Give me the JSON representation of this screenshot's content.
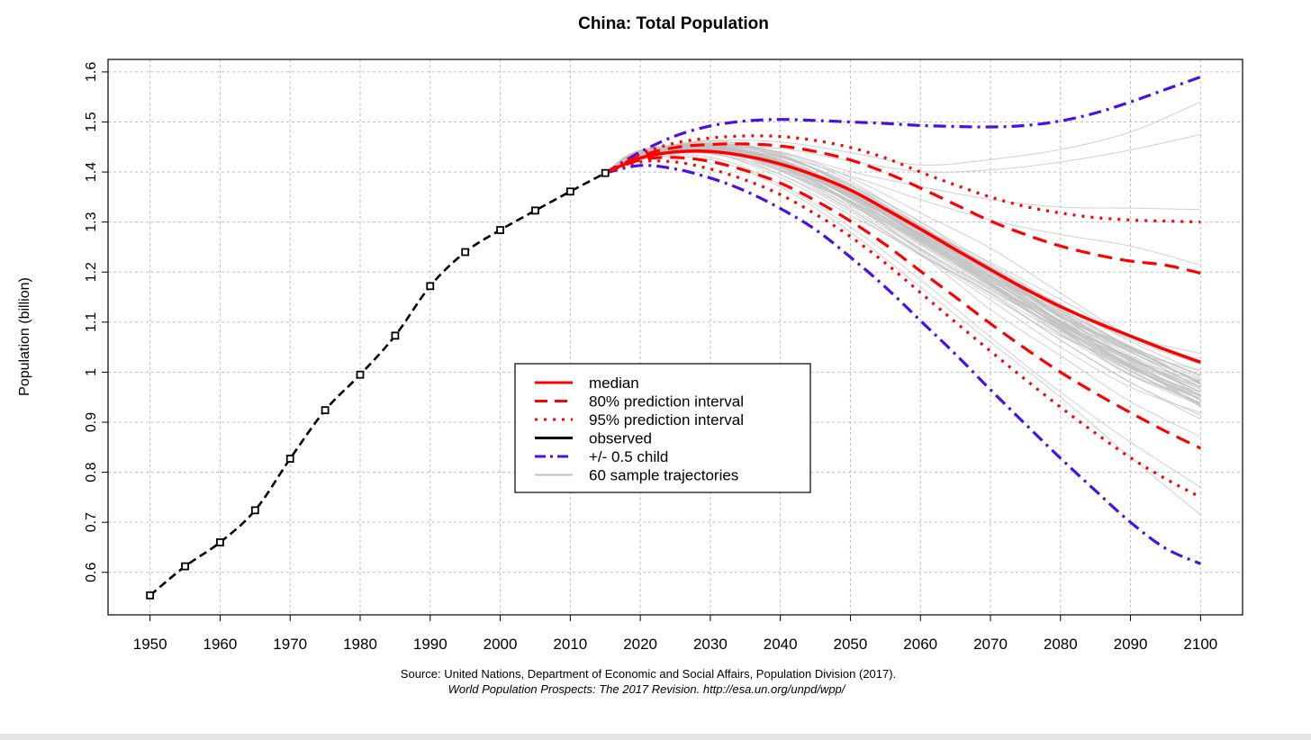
{
  "chart_data": {
    "type": "line",
    "title": "China: Total Population",
    "xlabel": "",
    "ylabel": "Population (billion)",
    "xlim": [
      1944,
      2106
    ],
    "ylim": [
      0.515,
      1.625
    ],
    "xticks": [
      1950,
      1960,
      1970,
      1980,
      1990,
      2000,
      2010,
      2020,
      2030,
      2040,
      2050,
      2060,
      2070,
      2080,
      2090,
      2100
    ],
    "yticks": [
      0.6,
      0.7,
      0.8,
      0.9,
      1,
      1.1,
      1.2,
      1.3,
      1.4,
      1.5,
      1.6
    ],
    "grid": true,
    "legend_position": "center",
    "colors": {
      "median": "#ff0000",
      "observed": "#000000",
      "child": "#4b0ee8",
      "trajectories": "#c0c0c0"
    },
    "legend": [
      {
        "label": "median",
        "style": "solid",
        "color": "#ff0000"
      },
      {
        "label": "80% prediction interval",
        "style": "dashed",
        "color": "#ff0000"
      },
      {
        "label": "95% prediction interval",
        "style": "dotted",
        "color": "#ff0000"
      },
      {
        "label": "observed",
        "style": "solid",
        "color": "#000000"
      },
      {
        "label": "+/- 0.5 child",
        "style": "dashdot",
        "color": "#4b0ee8"
      },
      {
        "label": "60 sample trajectories",
        "style": "solid",
        "color": "#c0c0c0"
      }
    ],
    "series": [
      {
        "name": "observed",
        "x": [
          1950,
          1955,
          1960,
          1965,
          1970,
          1975,
          1980,
          1985,
          1990,
          1995,
          2000,
          2005,
          2010,
          2015
        ],
        "y": [
          0.554,
          0.612,
          0.66,
          0.724,
          0.827,
          0.924,
          0.995,
          1.073,
          1.172,
          1.24,
          1.284,
          1.323,
          1.361,
          1.398
        ]
      },
      {
        "name": "median",
        "x": [
          2015,
          2020,
          2025,
          2030,
          2035,
          2040,
          2045,
          2050,
          2055,
          2060,
          2065,
          2070,
          2075,
          2080,
          2085,
          2090,
          2095,
          2100
        ],
        "y": [
          1.398,
          1.428,
          1.44,
          1.441,
          1.432,
          1.416,
          1.393,
          1.364,
          1.326,
          1.286,
          1.245,
          1.205,
          1.166,
          1.131,
          1.1,
          1.072,
          1.045,
          1.02
        ]
      },
      {
        "name": "80% prediction interval (upper)",
        "x": [
          2015,
          2020,
          2025,
          2030,
          2035,
          2040,
          2045,
          2050,
          2055,
          2060,
          2065,
          2070,
          2075,
          2080,
          2085,
          2090,
          2095,
          2100
        ],
        "y": [
          1.398,
          1.432,
          1.449,
          1.455,
          1.456,
          1.452,
          1.441,
          1.424,
          1.399,
          1.368,
          1.335,
          1.302,
          1.275,
          1.252,
          1.235,
          1.222,
          1.214,
          1.198
        ]
      },
      {
        "name": "80% prediction interval (lower)",
        "x": [
          2015,
          2020,
          2025,
          2030,
          2035,
          2040,
          2045,
          2050,
          2055,
          2060,
          2065,
          2070,
          2075,
          2080,
          2085,
          2090,
          2095,
          2100
        ],
        "y": [
          1.398,
          1.424,
          1.429,
          1.421,
          1.403,
          1.378,
          1.343,
          1.302,
          1.255,
          1.202,
          1.15,
          1.097,
          1.047,
          1.0,
          0.958,
          0.919,
          0.882,
          0.848
        ]
      },
      {
        "name": "95% prediction interval (upper)",
        "x": [
          2015,
          2020,
          2025,
          2030,
          2035,
          2040,
          2045,
          2050,
          2055,
          2060,
          2065,
          2070,
          2075,
          2080,
          2085,
          2090,
          2095,
          2100
        ],
        "y": [
          1.398,
          1.436,
          1.458,
          1.468,
          1.472,
          1.471,
          1.463,
          1.449,
          1.428,
          1.4,
          1.374,
          1.35,
          1.331,
          1.318,
          1.309,
          1.304,
          1.302,
          1.3
        ]
      },
      {
        "name": "95% prediction interval (lower)",
        "x": [
          2015,
          2020,
          2025,
          2030,
          2035,
          2040,
          2045,
          2050,
          2055,
          2060,
          2065,
          2070,
          2075,
          2080,
          2085,
          2090,
          2095,
          2100
        ],
        "y": [
          1.398,
          1.42,
          1.42,
          1.406,
          1.384,
          1.355,
          1.316,
          1.271,
          1.218,
          1.159,
          1.1,
          1.042,
          0.985,
          0.93,
          0.878,
          0.829,
          0.787,
          0.75
        ]
      },
      {
        "name": "+0.5 child",
        "x": [
          2015,
          2020,
          2025,
          2030,
          2035,
          2040,
          2045,
          2050,
          2055,
          2060,
          2065,
          2070,
          2075,
          2080,
          2085,
          2090,
          2095,
          2100
        ],
        "y": [
          1.398,
          1.44,
          1.472,
          1.492,
          1.502,
          1.505,
          1.503,
          1.5,
          1.497,
          1.493,
          1.491,
          1.49,
          1.493,
          1.502,
          1.518,
          1.54,
          1.565,
          1.59
        ]
      },
      {
        "name": "-0.5 child",
        "x": [
          2015,
          2020,
          2025,
          2030,
          2035,
          2040,
          2045,
          2050,
          2055,
          2060,
          2065,
          2070,
          2075,
          2080,
          2085,
          2090,
          2095,
          2100
        ],
        "y": [
          1.398,
          1.413,
          1.406,
          1.388,
          1.362,
          1.327,
          1.285,
          1.23,
          1.17,
          1.103,
          1.036,
          0.965,
          0.896,
          0.828,
          0.763,
          0.7,
          0.648,
          0.617
        ]
      }
    ],
    "trajectories": [
      [
        1.434,
        1.451,
        1.422,
        1.359,
        1.279,
        1.195,
        1.108,
        1.01,
        0.96
      ],
      [
        1.427,
        1.444,
        1.412,
        1.339,
        1.242,
        1.152,
        1.072,
        1.014,
        0.93
      ],
      [
        1.443,
        1.439,
        1.389,
        1.314,
        1.235,
        1.125,
        1.033,
        0.941,
        0.871
      ],
      [
        1.438,
        1.452,
        1.404,
        1.333,
        1.265,
        1.18,
        1.087,
        0.993,
        0.954
      ],
      [
        1.43,
        1.448,
        1.44,
        1.389,
        1.318,
        1.248,
        1.158,
        1.074,
        1.037
      ],
      [
        1.442,
        1.443,
        1.418,
        1.362,
        1.281,
        1.19,
        1.121,
        1.043,
        1.004
      ],
      [
        1.436,
        1.447,
        1.419,
        1.354,
        1.268,
        1.18,
        1.093,
        1.031,
        0.953
      ],
      [
        1.443,
        1.455,
        1.422,
        1.35,
        1.287,
        1.219,
        1.145,
        1.07,
        1.016
      ],
      [
        1.437,
        1.437,
        1.395,
        1.325,
        1.236,
        1.157,
        1.064,
        0.979,
        0.914
      ],
      [
        1.43,
        1.457,
        1.438,
        1.382,
        1.293,
        1.199,
        1.113,
        1.047,
        0.978
      ],
      [
        1.437,
        1.45,
        1.417,
        1.354,
        1.272,
        1.19,
        1.123,
        1.026,
        0.977
      ],
      [
        1.437,
        1.449,
        1.422,
        1.356,
        1.282,
        1.209,
        1.112,
        1.02,
        0.951
      ],
      [
        1.427,
        1.448,
        1.414,
        1.354,
        1.275,
        1.188,
        1.11,
        1.041,
        0.969
      ],
      [
        1.436,
        1.463,
        1.435,
        1.367,
        1.274,
        1.189,
        1.089,
        1.013,
        0.933
      ],
      [
        1.436,
        1.443,
        1.422,
        1.357,
        1.271,
        1.175,
        1.076,
        1.009,
        0.946
      ],
      [
        1.433,
        1.446,
        1.402,
        1.338,
        1.248,
        1.163,
        1.087,
        1.003,
        0.937
      ],
      [
        1.424,
        1.45,
        1.431,
        1.377,
        1.3,
        1.216,
        1.133,
        1.048,
        0.977
      ],
      [
        1.434,
        1.444,
        1.42,
        1.356,
        1.268,
        1.185,
        1.103,
        1.04,
        0.969
      ],
      [
        1.44,
        1.447,
        1.429,
        1.374,
        1.288,
        1.208,
        1.117,
        1.048,
        0.979
      ],
      [
        1.438,
        1.452,
        1.414,
        1.336,
        1.245,
        1.157,
        1.064,
        0.98,
        0.906
      ],
      [
        1.44,
        1.445,
        1.41,
        1.343,
        1.26,
        1.176,
        1.079,
        1.003,
        0.936
      ],
      [
        1.442,
        1.448,
        1.418,
        1.367,
        1.29,
        1.212,
        1.132,
        1.065,
        1.016
      ],
      [
        1.433,
        1.458,
        1.431,
        1.373,
        1.301,
        1.206,
        1.136,
        1.061,
        1.0
      ],
      [
        1.433,
        1.452,
        1.418,
        1.351,
        1.278,
        1.205,
        1.113,
        1.05,
        0.975
      ],
      [
        1.44,
        1.45,
        1.421,
        1.354,
        1.273,
        1.185,
        1.096,
        1.024,
        0.96
      ],
      [
        1.444,
        1.451,
        1.41,
        1.329,
        1.246,
        1.166,
        1.084,
        0.996,
        0.94
      ],
      [
        1.435,
        1.448,
        1.418,
        1.361,
        1.29,
        1.209,
        1.111,
        1.034,
        0.971
      ],
      [
        1.435,
        1.446,
        1.413,
        1.359,
        1.267,
        1.171,
        1.095,
        1.011,
        0.944
      ],
      [
        1.433,
        1.45,
        1.425,
        1.365,
        1.283,
        1.191,
        1.1,
        1.03,
        0.96
      ],
      [
        1.435,
        1.453,
        1.421,
        1.351,
        1.276,
        1.199,
        1.101,
        1.028,
        0.966
      ],
      [
        1.436,
        1.444,
        1.395,
        1.32,
        1.233,
        1.159,
        1.075,
        0.994,
        0.934
      ],
      [
        1.424,
        1.454,
        1.418,
        1.362,
        1.286,
        1.203,
        1.111,
        1.045,
        0.979
      ],
      [
        1.436,
        1.436,
        1.402,
        1.325,
        1.237,
        1.144,
        1.05,
        0.97,
        0.919
      ],
      [
        1.43,
        1.437,
        1.415,
        1.354,
        1.274,
        1.206,
        1.112,
        1.028,
        0.982
      ],
      [
        1.439,
        1.451,
        1.426,
        1.352,
        1.264,
        1.175,
        1.1,
        1.015,
        0.955
      ],
      [
        1.43,
        1.443,
        1.411,
        1.351,
        1.275,
        1.193,
        1.102,
        1.026,
        0.97
      ],
      [
        1.43,
        1.462,
        1.433,
        1.373,
        1.291,
        1.199,
        1.099,
        1.012,
        0.938
      ],
      [
        1.433,
        1.444,
        1.41,
        1.342,
        1.257,
        1.173,
        1.093,
        1.022,
        0.944
      ],
      [
        1.438,
        1.45,
        1.422,
        1.358,
        1.283,
        1.21,
        1.125,
        1.05,
        0.995
      ],
      [
        1.437,
        1.447,
        1.413,
        1.343,
        1.268,
        1.179,
        1.09,
        1.013,
        0.954
      ],
      [
        1.434,
        1.441,
        1.41,
        1.349,
        1.266,
        1.184,
        1.102,
        1.028,
        0.966
      ],
      [
        1.439,
        1.458,
        1.436,
        1.366,
        1.283,
        1.198,
        1.119,
        1.046,
        0.988
      ],
      [
        1.434,
        1.449,
        1.418,
        1.347,
        1.263,
        1.177,
        1.083,
        1.001,
        0.935
      ],
      [
        1.437,
        1.443,
        1.421,
        1.358,
        1.283,
        1.201,
        1.117,
        1.04,
        0.981
      ],
      [
        1.439,
        1.449,
        1.423,
        1.356,
        1.27,
        1.18,
        1.092,
        1.012,
        0.944
      ],
      [
        1.431,
        1.444,
        1.405,
        1.338,
        1.254,
        1.167,
        1.087,
        1.009,
        0.952
      ],
      [
        1.433,
        1.453,
        1.423,
        1.365,
        1.29,
        1.206,
        1.124,
        1.051,
        0.992
      ],
      [
        1.443,
        1.455,
        1.431,
        1.359,
        1.276,
        1.193,
        1.103,
        1.027,
        0.961
      ],
      [
        1.431,
        1.442,
        1.406,
        1.34,
        1.259,
        1.171,
        1.085,
        1.007,
        0.945
      ],
      [
        1.436,
        1.457,
        1.432,
        1.37,
        1.294,
        1.209,
        1.127,
        1.052,
        0.994
      ],
      [
        1.436,
        1.441,
        1.409,
        1.342,
        1.262,
        1.183,
        1.097,
        1.022,
        0.961
      ],
      [
        1.431,
        1.447,
        1.417,
        1.355,
        1.27,
        1.185,
        1.099,
        1.017,
        0.955
      ],
      [
        1.437,
        1.451,
        1.423,
        1.361,
        1.283,
        1.2,
        1.114,
        1.04,
        0.984
      ],
      [
        1.44,
        1.446,
        1.414,
        1.348,
        1.263,
        1.176,
        1.091,
        1.01,
        0.948
      ],
      [
        1.441,
        1.462,
        1.46,
        1.439,
        1.414,
        1.425,
        1.445,
        1.48,
        1.54
      ],
      [
        1.434,
        1.449,
        1.447,
        1.422,
        1.401,
        1.404,
        1.42,
        1.444,
        1.475
      ],
      [
        1.433,
        1.454,
        1.439,
        1.401,
        1.371,
        1.345,
        1.33,
        1.328,
        1.325
      ],
      [
        1.435,
        1.446,
        1.43,
        1.392,
        1.345,
        1.304,
        1.275,
        1.252,
        1.214
      ],
      [
        1.427,
        1.43,
        1.375,
        1.29,
        1.185,
        1.07,
        0.96,
        0.86,
        0.77
      ],
      [
        1.426,
        1.425,
        1.37,
        1.28,
        1.17,
        1.06,
        0.95,
        0.83,
        0.715
      ]
    ],
    "trajectory_x": [
      2020,
      2030,
      2040,
      2050,
      2060,
      2070,
      2080,
      2090,
      2100
    ],
    "source_line1": "Source: United Nations, Department of Economic and Social Affairs, Population Division (2017).",
    "source_line2": "World Population Prospects: The 2017 Revision. http://esa.un.org/unpd/wpp/"
  }
}
